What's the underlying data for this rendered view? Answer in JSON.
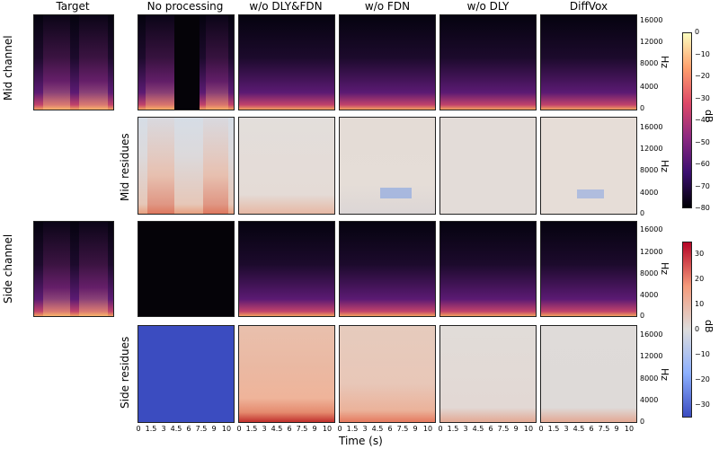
{
  "column_titles": [
    "Target",
    "No processing",
    "w/o DLY&FDN",
    "w/o FDN",
    "w/o DLY",
    "DiffVox"
  ],
  "row_labels": {
    "mid_channel": "Mid channel",
    "mid_residues": "Mid residues",
    "side_channel": "Side channel",
    "side_residues": "Side residues"
  },
  "y_axis": {
    "label": "Hz",
    "ticks": [
      "0",
      "4000",
      "8000",
      "12000",
      "16000"
    ]
  },
  "x_axis": {
    "label": "Time (s)",
    "ticks": [
      "0",
      "1.5",
      "3",
      "4.5",
      "6",
      "7.5",
      "9",
      "10"
    ]
  },
  "colorbar_spectrogram": {
    "label": "dB",
    "ticks": [
      "0",
      "−10",
      "−20",
      "−30",
      "−40",
      "−50",
      "−60",
      "−70",
      "−80"
    ],
    "range": [
      -80,
      0
    ],
    "colors": [
      "#000004",
      "#3b0f70",
      "#8c2981",
      "#de4968",
      "#fe9f6d",
      "#fcfdbf"
    ]
  },
  "colorbar_residues": {
    "label": "dB",
    "ticks": [
      "30",
      "20",
      "10",
      "0",
      "−10",
      "−20",
      "−30"
    ],
    "range": [
      -35,
      35
    ],
    "colors": [
      "#3b4cc0",
      "#8db0fe",
      "#dddcdc",
      "#f49a7b",
      "#b40426"
    ]
  }
}
